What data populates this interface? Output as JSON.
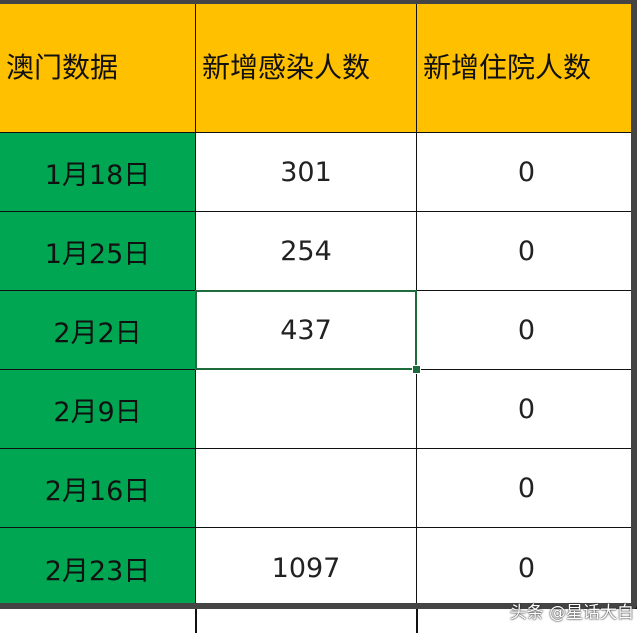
{
  "headers": [
    "澳门数据",
    "新增感染人数",
    "新增住院人数"
  ],
  "rows": [
    {
      "date": "1月18日",
      "infected": "301",
      "hospitalized": "0"
    },
    {
      "date": "1月25日",
      "infected": "254",
      "hospitalized": "0"
    },
    {
      "date": "2月2日",
      "infected": "437",
      "hospitalized": "0"
    },
    {
      "date": "2月9日",
      "infected": "",
      "hospitalized": "0"
    },
    {
      "date": "2月16日",
      "infected": "",
      "hospitalized": "0"
    },
    {
      "date": "2月23日",
      "infected": "1097",
      "hospitalized": "0"
    }
  ],
  "selected_cell": {
    "row": 2,
    "column": "infected"
  },
  "colors": {
    "header": "#ffc000",
    "date_column": "#00a651",
    "selection": "#1e6b3c"
  },
  "watermark": "头条 @星话大白"
}
